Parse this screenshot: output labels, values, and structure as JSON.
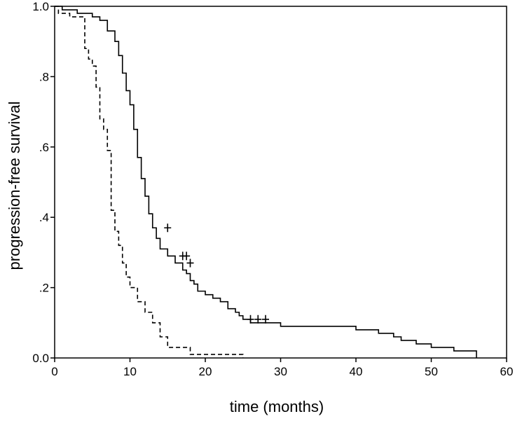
{
  "chart_data": {
    "type": "line",
    "step": true,
    "xlabel": "time (months)",
    "ylabel": "progression-free survival",
    "xlim": [
      0,
      60
    ],
    "ylim": [
      0,
      1
    ],
    "xticks": [
      0,
      10,
      20,
      30,
      40,
      50,
      60
    ],
    "xtick_labels": [
      "0",
      "10",
      "20",
      "30",
      "40",
      "50",
      "60"
    ],
    "yticks": [
      0,
      0.2,
      0.4,
      0.6,
      0.8,
      1.0
    ],
    "ytick_labels": [
      "0.0",
      ".2",
      ".4",
      ".6",
      ".8",
      "1.0"
    ],
    "grid": false,
    "legend": "none",
    "series": [
      {
        "style": "solid",
        "color": "#000000",
        "x": [
          0,
          1,
          3,
          5,
          6,
          7,
          8,
          8.5,
          9,
          9.5,
          10,
          10.5,
          11,
          11.5,
          12,
          12.5,
          13,
          13.5,
          14,
          15,
          16,
          17,
          17.5,
          18,
          18.5,
          19,
          20,
          21,
          22,
          23,
          24,
          24.5,
          25,
          26,
          28,
          30,
          40,
          43,
          45,
          46,
          48,
          50,
          53,
          56
        ],
        "y": [
          1.0,
          0.99,
          0.98,
          0.97,
          0.96,
          0.93,
          0.9,
          0.86,
          0.81,
          0.76,
          0.72,
          0.65,
          0.57,
          0.51,
          0.46,
          0.41,
          0.37,
          0.34,
          0.31,
          0.29,
          0.27,
          0.25,
          0.24,
          0.22,
          0.21,
          0.19,
          0.18,
          0.17,
          0.16,
          0.14,
          0.13,
          0.12,
          0.11,
          0.1,
          0.1,
          0.09,
          0.08,
          0.07,
          0.06,
          0.05,
          0.04,
          0.03,
          0.02,
          0.0
        ],
        "censored_x": [
          15,
          17,
          17.5,
          18,
          26,
          27,
          28
        ],
        "censored_y": [
          0.37,
          0.29,
          0.29,
          0.27,
          0.11,
          0.11,
          0.11
        ]
      },
      {
        "style": "dashed",
        "color": "#000000",
        "x": [
          0,
          0.5,
          2,
          4,
          4.5,
          5,
          5.5,
          6,
          6.5,
          7,
          7.5,
          8,
          8.5,
          9,
          9.5,
          10,
          11,
          12,
          13,
          14,
          15,
          18,
          25
        ],
        "y": [
          1.0,
          0.98,
          0.97,
          0.88,
          0.85,
          0.83,
          0.77,
          0.68,
          0.65,
          0.59,
          0.42,
          0.36,
          0.32,
          0.27,
          0.23,
          0.2,
          0.16,
          0.13,
          0.1,
          0.06,
          0.03,
          0.01,
          0.0
        ],
        "censored_x": [],
        "censored_y": []
      }
    ]
  }
}
